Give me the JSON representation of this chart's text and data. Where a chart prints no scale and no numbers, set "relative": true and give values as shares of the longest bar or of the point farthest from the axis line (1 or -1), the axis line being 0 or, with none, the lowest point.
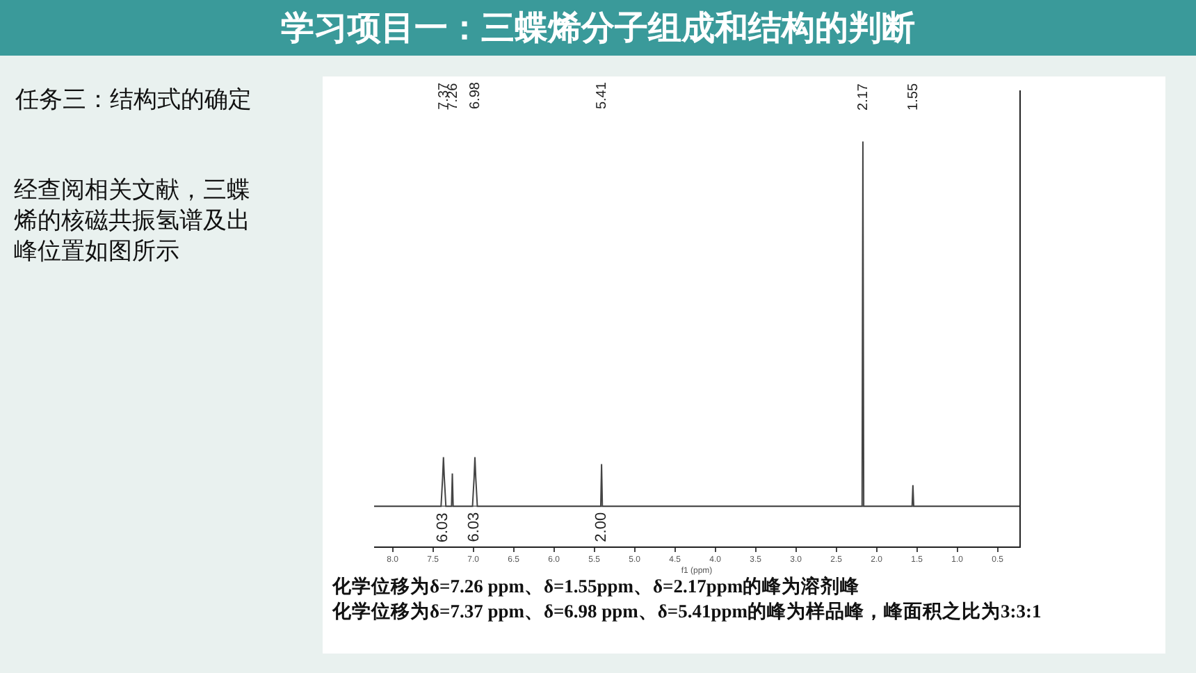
{
  "chart_data": {
    "type": "line",
    "title": "学习项目一：三蝶烯分子组成和结构的判断",
    "subtitle": "任务三：结构式的确定",
    "xlabel": "f1 (ppm)",
    "relative": true,
    "marker": "none",
    "line_style": "solid",
    "xlim": [
      8.23,
      0.23
    ],
    "xticks": [
      {
        "value": 8.0,
        "label": "8.0"
      },
      {
        "value": 7.5,
        "label": "7.5"
      },
      {
        "value": 7.0,
        "label": "7.0"
      },
      {
        "value": 6.5,
        "label": "6.5"
      },
      {
        "value": 6.0,
        "label": "6.0"
      },
      {
        "value": 5.5,
        "label": "5.5"
      },
      {
        "value": 5.0,
        "label": "5.0"
      },
      {
        "value": 4.5,
        "label": "4.5"
      },
      {
        "value": 4.0,
        "label": "4.0"
      },
      {
        "value": 3.5,
        "label": "3.5"
      },
      {
        "value": 3.0,
        "label": "3.0"
      },
      {
        "value": 2.5,
        "label": "2.5"
      },
      {
        "value": 2.0,
        "label": "2.0"
      },
      {
        "value": 1.5,
        "label": "1.5"
      },
      {
        "value": 1.0,
        "label": "1.0"
      },
      {
        "value": 0.5,
        "label": "0.5"
      }
    ],
    "x": [
      8.23,
      7.4,
      7.38,
      7.37,
      7.36,
      7.34,
      7.27,
      7.26,
      7.25,
      7.01,
      6.99,
      6.98,
      6.97,
      6.95,
      5.42,
      5.41,
      5.4,
      2.18,
      2.17,
      2.16,
      1.56,
      1.55,
      1.54,
      0.23
    ],
    "series": [
      {
        "color": "#444444",
        "values": [
          0,
          0,
          0.08,
          0.135,
          0.08,
          0,
          0,
          0.09,
          0,
          0,
          0.08,
          0.135,
          0.08,
          0,
          0,
          0.116,
          0,
          0,
          1,
          0,
          0,
          0.058,
          0,
          0
        ]
      }
    ],
    "annotations": [
      "经查阅相关文献，三蝶烯的核磁共振氢谱及出峰位置如图所示",
      "化学位移为δ=7.26 ppm、δ=1.55ppm、δ=2.17ppm的峰为溶剂峰",
      "化学位移为δ=7.37 ppm、δ=6.98 ppm、δ=5.41ppm的峰为样品峰，峰面积之比为3:3:1",
      "7.37",
      "7.26",
      "6.98",
      "5.41",
      "2.17",
      "1.55",
      {
        "text": "6.03",
        "x": 7.37,
        "y": -0.01
      },
      {
        "text": "6.03",
        "x": 6.98,
        "y": -0.01
      },
      {
        "text": "2.00",
        "x": 5.41,
        "y": -0.01
      }
    ]
  }
}
